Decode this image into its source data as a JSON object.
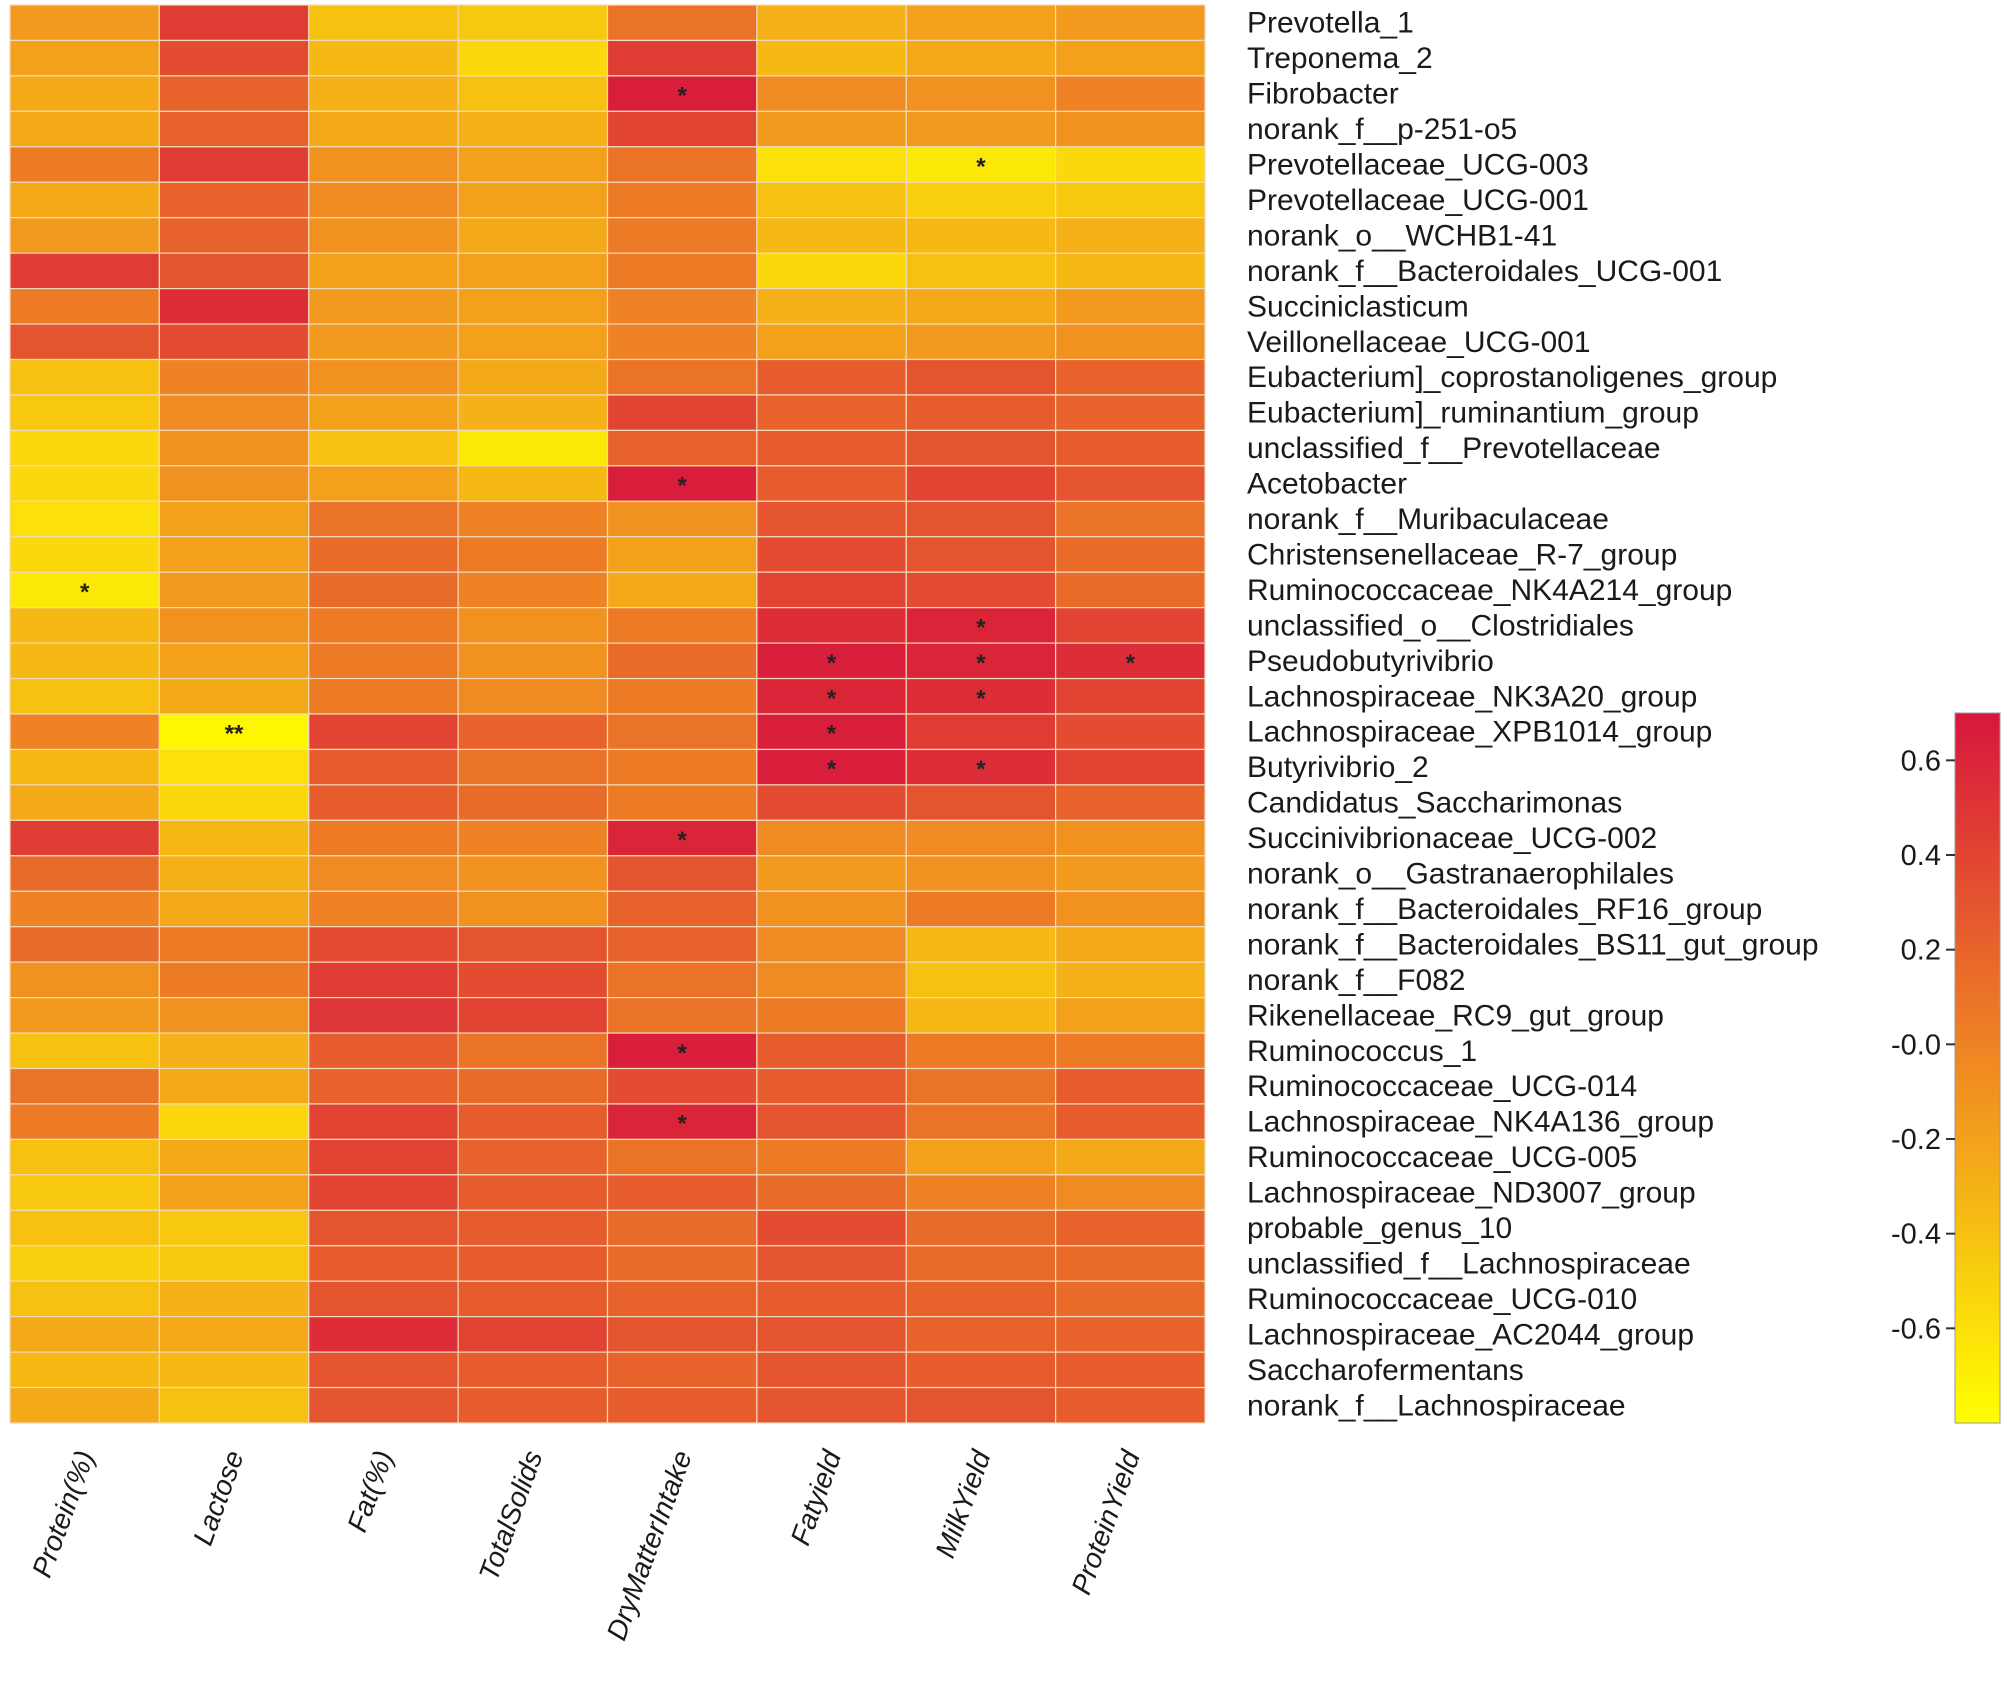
{
  "chart_data": {
    "type": "heatmap",
    "columns": [
      "Protein(%)",
      "Lactose",
      "Fat(%)",
      "TotalSolids",
      "DryMatterIntake",
      "Fatyield",
      "MilkYield",
      "ProteinYield"
    ],
    "rows": [
      "Prevotella_1",
      "Treponema_2",
      "Fibrobacter",
      "norank_f__p-251-o5",
      "Prevotellaceae_UCG-003",
      "Prevotellaceae_UCG-001",
      "norank_o__WCHB1-41",
      "norank_f__Bacteroidales_UCG-001",
      "Succiniclasticum",
      "Veillonellaceae_UCG-001",
      "Eubacterium]_coprostanoligenes_group",
      "Eubacterium]_ruminantium_group",
      "unclassified_f__Prevotellaceae",
      "Acetobacter",
      "norank_f__Muribaculaceae",
      "Christensenellaceae_R-7_group",
      "Ruminococcaceae_NK4A214_group",
      "unclassified_o__Clostridiales",
      "Pseudobutyrivibrio",
      "Lachnospiraceae_NK3A20_group",
      "Lachnospiraceae_XPB1014_group",
      "Butyrivibrio_2",
      "Candidatus_Saccharimonas",
      "Succinivibrionaceae_UCG-002",
      "norank_o__Gastranaerophilales",
      "norank_f__Bacteroidales_RF16_group",
      "norank_f__Bacteroidales_BS11_gut_group",
      "norank_f__F082",
      "Rikenellaceae_RC9_gut_group",
      "Ruminococcus_1",
      "Ruminococcaceae_UCG-014",
      "Lachnospiraceae_NK4A136_group",
      "Ruminococcaceae_UCG-005",
      "Lachnospiraceae_ND3007_group",
      "probable_genus_10",
      "unclassified_f__Lachnospiraceae",
      "Ruminococcaceae_UCG-010",
      "Lachnospiraceae_AC2044_group",
      "Saccharofermentans",
      "norank_f__Lachnospiraceae"
    ],
    "values": [
      [
        -0.15,
        0.45,
        -0.4,
        -0.45,
        0.1,
        -0.3,
        -0.2,
        -0.15
      ],
      [
        -0.2,
        0.35,
        -0.35,
        -0.55,
        0.45,
        -0.35,
        -0.25,
        -0.2
      ],
      [
        -0.25,
        0.2,
        -0.3,
        -0.4,
        0.65,
        -0.05,
        -0.1,
        0.0
      ],
      [
        -0.25,
        0.2,
        -0.25,
        -0.3,
        0.4,
        -0.15,
        -0.15,
        -0.1
      ],
      [
        0.05,
        0.45,
        -0.1,
        -0.2,
        0.1,
        -0.6,
        -0.65,
        -0.55
      ],
      [
        -0.25,
        0.2,
        -0.05,
        -0.2,
        0.05,
        -0.4,
        -0.5,
        -0.45
      ],
      [
        -0.15,
        0.2,
        -0.1,
        -0.25,
        0.05,
        -0.35,
        -0.35,
        -0.3
      ],
      [
        0.45,
        0.3,
        -0.2,
        -0.2,
        0.05,
        -0.55,
        -0.4,
        -0.35
      ],
      [
        0.05,
        0.55,
        -0.15,
        -0.2,
        0.0,
        -0.3,
        -0.25,
        -0.15
      ],
      [
        0.3,
        0.35,
        -0.15,
        -0.2,
        0.0,
        -0.2,
        -0.15,
        -0.1
      ],
      [
        -0.4,
        0.0,
        -0.1,
        -0.25,
        0.1,
        0.25,
        0.3,
        0.2
      ],
      [
        -0.45,
        -0.05,
        -0.2,
        -0.3,
        0.4,
        0.2,
        0.25,
        0.2
      ],
      [
        -0.55,
        -0.1,
        -0.4,
        -0.65,
        0.2,
        0.25,
        0.3,
        0.25
      ],
      [
        -0.55,
        -0.1,
        -0.2,
        -0.35,
        0.65,
        0.25,
        0.4,
        0.3
      ],
      [
        -0.6,
        -0.2,
        0.1,
        0.0,
        -0.1,
        0.3,
        0.3,
        0.1
      ],
      [
        -0.55,
        -0.2,
        0.15,
        0.05,
        -0.2,
        0.35,
        0.3,
        0.15
      ],
      [
        -0.65,
        -0.15,
        0.15,
        0.0,
        -0.25,
        0.4,
        0.35,
        0.15
      ],
      [
        -0.35,
        -0.1,
        0.05,
        -0.1,
        0.05,
        0.55,
        0.6,
        0.4
      ],
      [
        -0.35,
        -0.2,
        0.05,
        -0.1,
        0.15,
        0.65,
        0.6,
        0.55
      ],
      [
        -0.4,
        -0.25,
        0.05,
        -0.05,
        0.05,
        0.6,
        0.55,
        0.4
      ],
      [
        0.0,
        -0.75,
        0.4,
        0.2,
        0.1,
        0.65,
        0.45,
        0.35
      ],
      [
        -0.35,
        -0.6,
        0.25,
        0.1,
        0.05,
        0.65,
        0.55,
        0.4
      ],
      [
        -0.25,
        -0.55,
        0.25,
        0.15,
        0.05,
        0.35,
        0.3,
        0.2
      ],
      [
        0.45,
        -0.35,
        0.05,
        0.0,
        0.6,
        -0.05,
        -0.05,
        -0.1
      ],
      [
        0.15,
        -0.3,
        -0.05,
        -0.1,
        0.3,
        -0.15,
        -0.1,
        -0.15
      ],
      [
        0.0,
        -0.25,
        0.0,
        -0.1,
        0.2,
        -0.1,
        0.05,
        -0.1
      ],
      [
        0.15,
        0.05,
        0.35,
        0.3,
        0.2,
        -0.05,
        -0.35,
        -0.25
      ],
      [
        -0.1,
        0.05,
        0.45,
        0.35,
        0.1,
        -0.05,
        -0.4,
        -0.3
      ],
      [
        -0.15,
        -0.1,
        0.5,
        0.4,
        0.1,
        0.05,
        -0.35,
        -0.2
      ],
      [
        -0.4,
        -0.3,
        0.25,
        0.1,
        0.65,
        0.25,
        0.05,
        0.05
      ],
      [
        0.1,
        -0.25,
        0.2,
        0.15,
        0.35,
        0.25,
        0.1,
        0.25
      ],
      [
        0.05,
        -0.55,
        0.4,
        0.25,
        0.6,
        0.3,
        0.1,
        0.25
      ],
      [
        -0.4,
        -0.25,
        0.4,
        0.2,
        0.1,
        0.05,
        -0.2,
        -0.25
      ],
      [
        -0.45,
        -0.2,
        0.4,
        0.25,
        0.25,
        0.15,
        0.0,
        -0.05
      ],
      [
        -0.4,
        -0.45,
        0.3,
        0.25,
        0.15,
        0.35,
        0.15,
        0.2
      ],
      [
        -0.5,
        -0.45,
        0.25,
        0.25,
        0.15,
        0.3,
        0.15,
        0.15
      ],
      [
        -0.4,
        -0.3,
        0.3,
        0.25,
        0.2,
        0.25,
        0.2,
        0.15
      ],
      [
        -0.25,
        -0.25,
        0.55,
        0.4,
        0.3,
        0.3,
        0.2,
        0.2
      ],
      [
        -0.35,
        -0.35,
        0.3,
        0.25,
        0.2,
        0.3,
        0.25,
        0.25
      ],
      [
        -0.25,
        -0.4,
        0.3,
        0.25,
        0.25,
        0.3,
        0.3,
        0.25
      ]
    ],
    "significance": [
      {
        "row": 2,
        "col": 4,
        "label": "*"
      },
      {
        "row": 4,
        "col": 6,
        "label": "*"
      },
      {
        "row": 13,
        "col": 4,
        "label": "*"
      },
      {
        "row": 16,
        "col": 0,
        "label": "*"
      },
      {
        "row": 17,
        "col": 6,
        "label": "*"
      },
      {
        "row": 18,
        "col": 5,
        "label": "*"
      },
      {
        "row": 18,
        "col": 6,
        "label": "*"
      },
      {
        "row": 18,
        "col": 7,
        "label": "*"
      },
      {
        "row": 19,
        "col": 5,
        "label": "*"
      },
      {
        "row": 19,
        "col": 6,
        "label": "*"
      },
      {
        "row": 20,
        "col": 1,
        "label": "**"
      },
      {
        "row": 20,
        "col": 5,
        "label": "*"
      },
      {
        "row": 21,
        "col": 5,
        "label": "*"
      },
      {
        "row": 21,
        "col": 6,
        "label": "*"
      },
      {
        "row": 23,
        "col": 4,
        "label": "*"
      },
      {
        "row": 29,
        "col": 4,
        "label": "*"
      },
      {
        "row": 31,
        "col": 4,
        "label": "*"
      }
    ],
    "colorbar": {
      "range": [
        -0.8,
        0.7
      ],
      "ticks": [
        0.6,
        0.4,
        0.2,
        0.0,
        -0.2,
        -0.4,
        -0.6
      ],
      "tick_labels": [
        "0.6",
        "0.4",
        "0.2",
        "-0.0",
        "-0.2",
        "-0.4",
        "-0.6"
      ],
      "colors": {
        "low": "#ffff00",
        "mid": "#f08a22",
        "high": "#d7163d"
      }
    },
    "grid": true,
    "legend_position": "right"
  }
}
